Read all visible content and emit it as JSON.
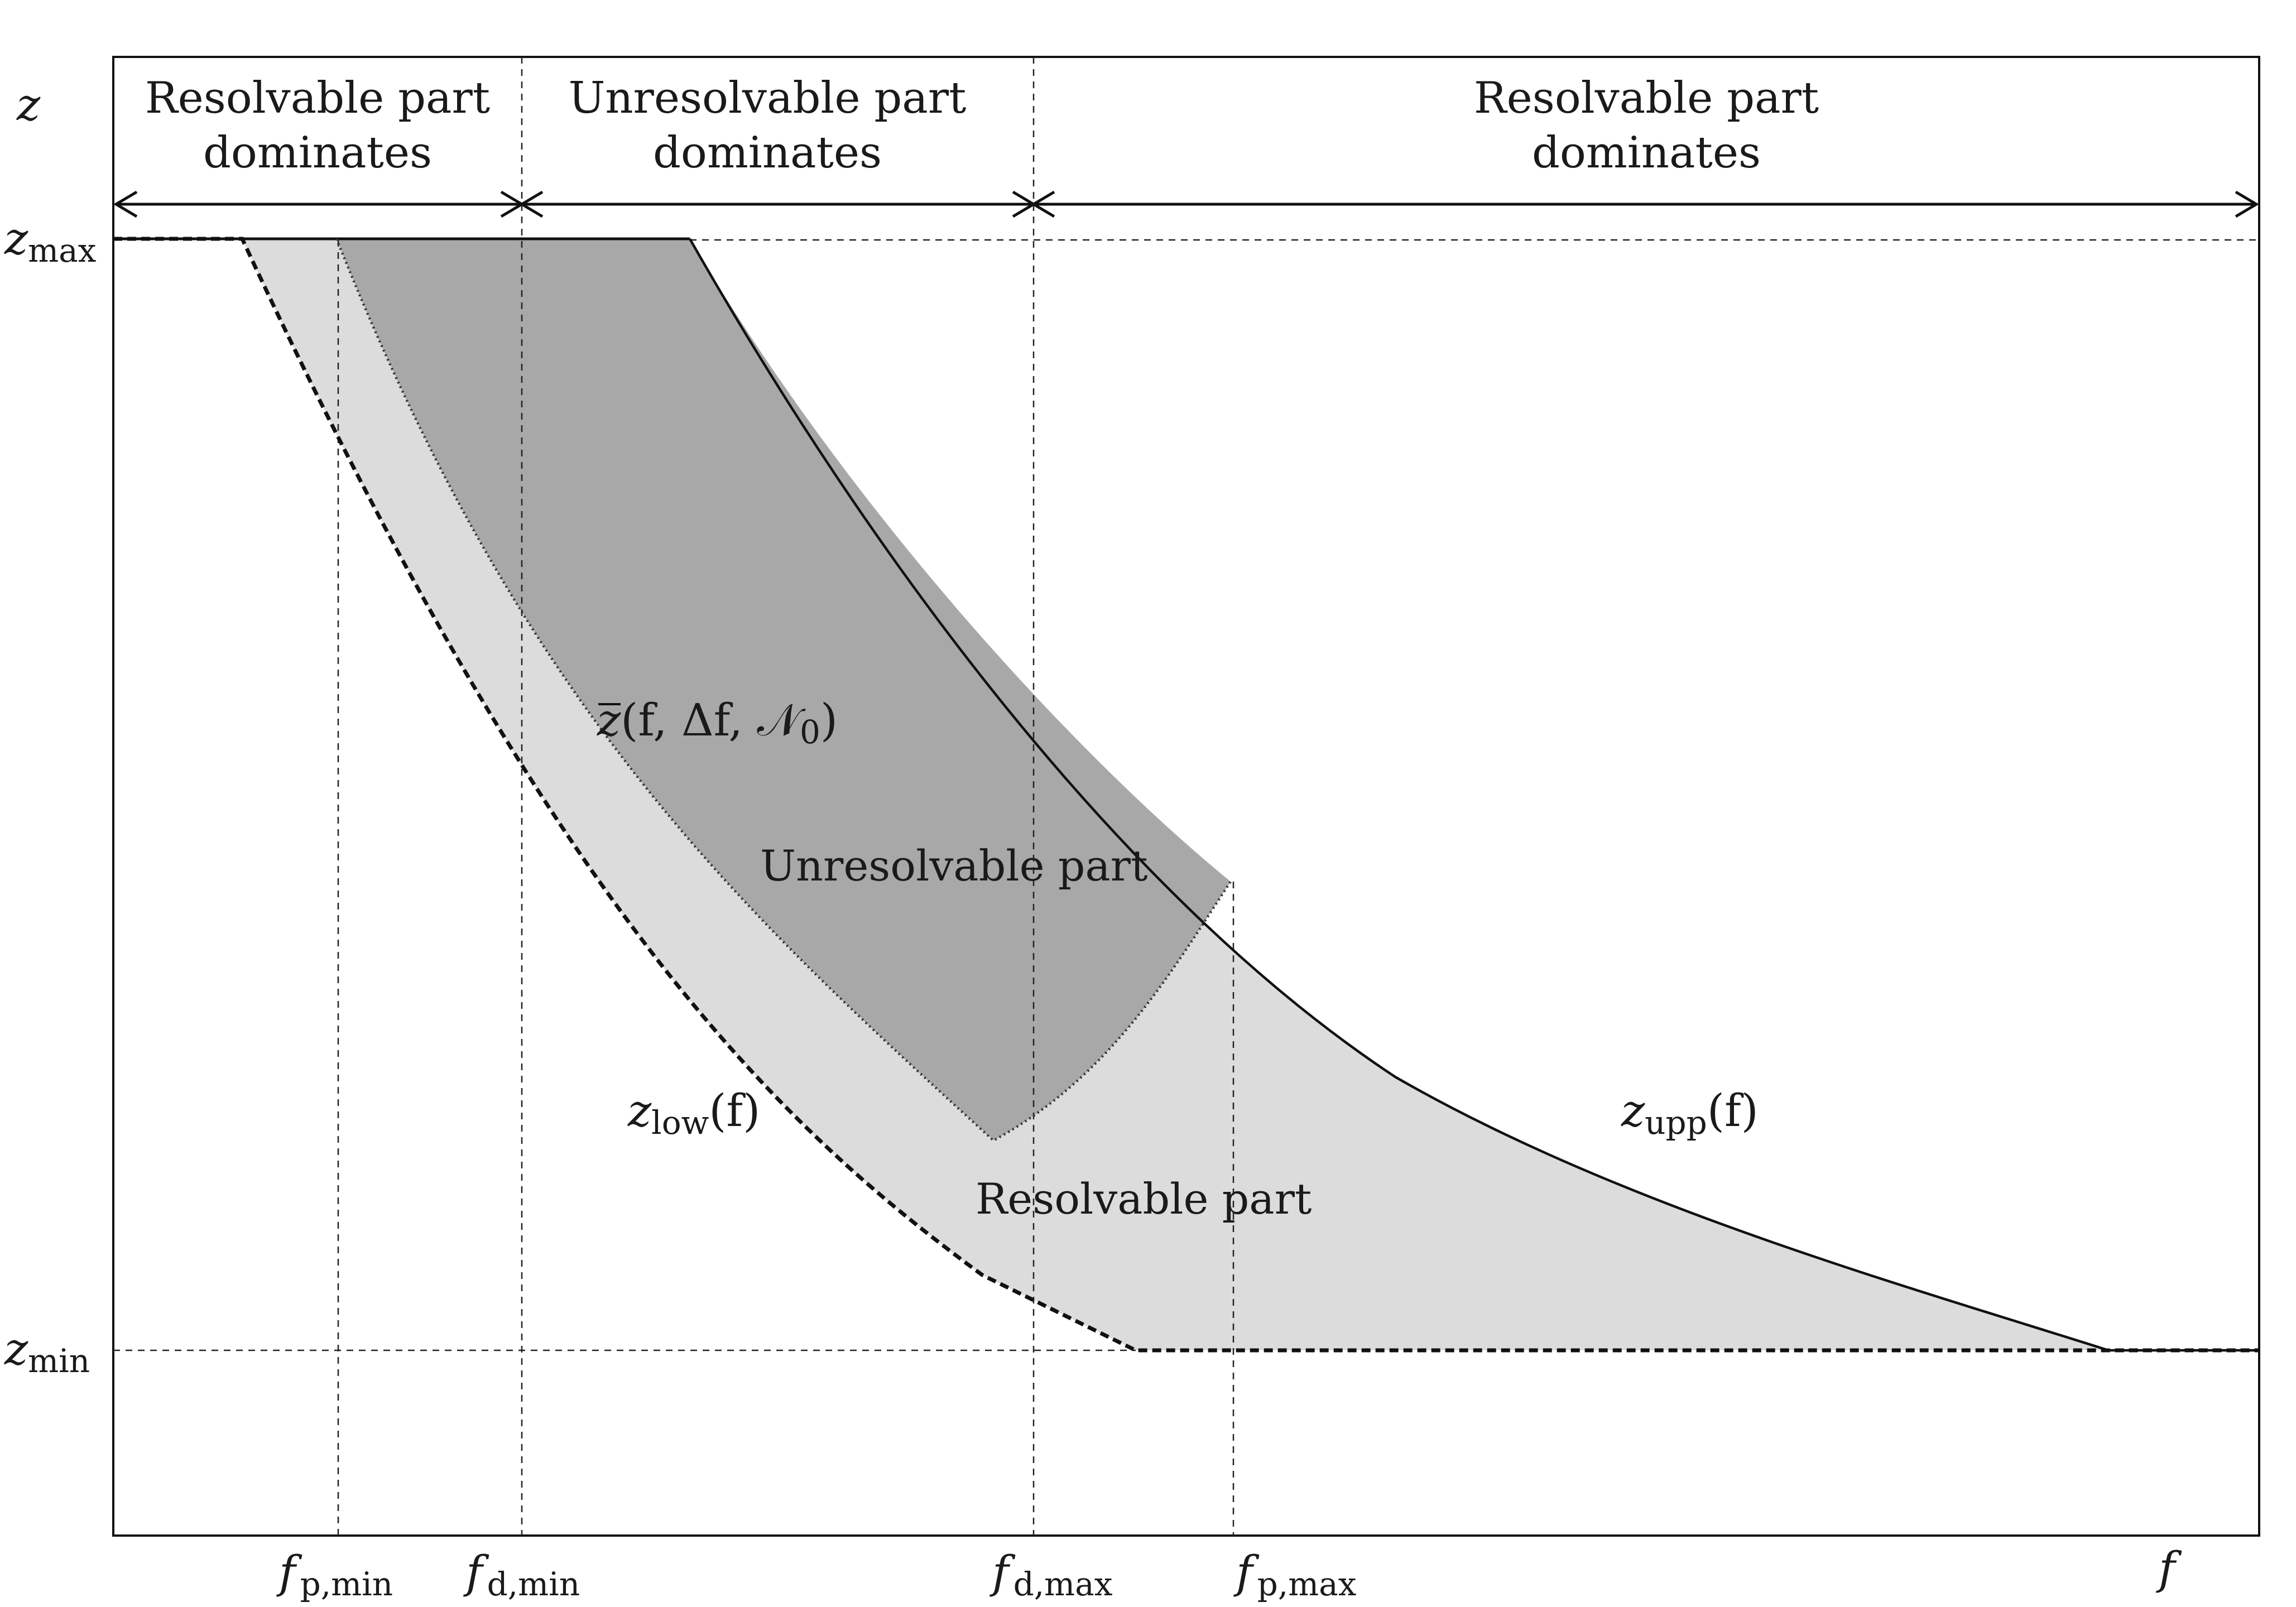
{
  "labels": {
    "y_axis": "z",
    "x_axis": "f",
    "z_max": {
      "base": "z",
      "sub": "max"
    },
    "z_min": {
      "base": "z",
      "sub": "min"
    },
    "f_p_min": {
      "base": "f",
      "sub": "p,min"
    },
    "f_d_min": {
      "base": "f",
      "sub": "d,min"
    },
    "f_d_max": {
      "base": "f",
      "sub": "d,max"
    },
    "f_p_max": {
      "base": "f",
      "sub": "p,max"
    },
    "z_low": {
      "base": "z",
      "sub": "low",
      "arg": "(f)"
    },
    "z_upp": {
      "base": "z",
      "sub": "upp",
      "arg": "(f)"
    },
    "z_bar": {
      "base": "z",
      "args": "(f, Δf, 𝒩",
      "arg_sub": "0",
      "close": ")"
    }
  },
  "top_regions": [
    {
      "line1": "Resolvable part",
      "line2": "dominates"
    },
    {
      "line1": "Unresolvable part",
      "line2": "dominates"
    },
    {
      "line1": "Resolvable part",
      "line2": "dominates"
    }
  ],
  "regions": {
    "unresolvable": "Unresolvable part",
    "resolvable": "Resolvable part"
  },
  "colors": {
    "light_fill": "#dcdcdc",
    "dark_fill": "#a8a8a8",
    "line": "#111111",
    "background": "#ffffff"
  }
}
